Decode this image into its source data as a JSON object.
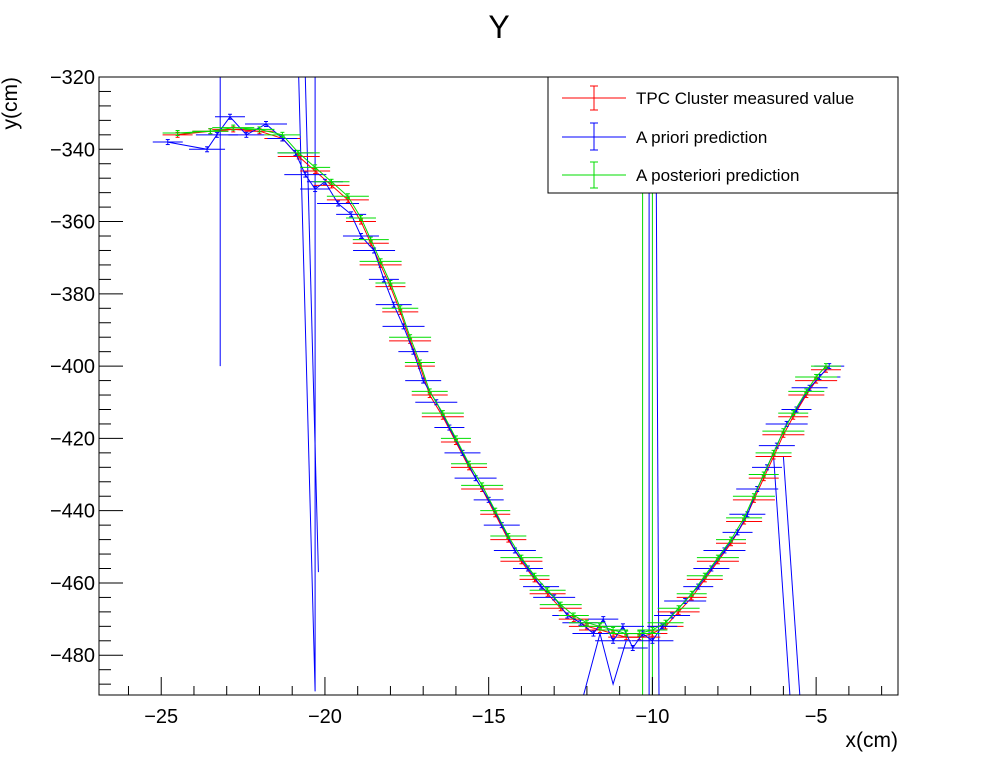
{
  "chart_data": {
    "type": "line",
    "title": "Y",
    "xlabel": "x(cm)",
    "ylabel": "y(cm)",
    "xlim": [
      -26.9,
      -2.5
    ],
    "ylim": [
      -491,
      -320
    ],
    "x_ticks": [
      -25,
      -20,
      -15,
      -10,
      -5
    ],
    "y_ticks": [
      -320,
      -340,
      -360,
      -380,
      -400,
      -420,
      -440,
      -460,
      -480
    ],
    "x_tick_labels": [
      "−25",
      "−20",
      "−15",
      "−10",
      "−5"
    ],
    "y_tick_labels": [
      "−320",
      "−340",
      "−360",
      "−380",
      "−400",
      "−420",
      "−440",
      "−460",
      "−480"
    ],
    "grid": false,
    "legend_position": "top-right",
    "series": [
      {
        "name": "TPC Cluster measured value",
        "color": "#ff0000",
        "x": [
          -24.5,
          -23.5,
          -22.8,
          -22.0,
          -21.3,
          -20.8,
          -20.3,
          -19.8,
          -19.3,
          -18.9,
          -18.6,
          -18.3,
          -18.0,
          -17.7,
          -17.4,
          -17.1,
          -16.8,
          -16.4,
          -16.0,
          -15.6,
          -15.2,
          -14.8,
          -14.4,
          -14.0,
          -13.6,
          -13.2,
          -12.8,
          -12.4,
          -12.0,
          -11.6,
          -11.2,
          -10.8,
          -10.4,
          -10.0,
          -9.6,
          -9.2,
          -8.8,
          -8.4,
          -8.0,
          -7.6,
          -7.2,
          -6.9,
          -6.6,
          -6.3,
          -6.0,
          -5.7,
          -5.3,
          -5.0,
          -4.7
        ],
        "y": [
          -336,
          -335,
          -334.5,
          -335,
          -337,
          -342,
          -346,
          -350,
          -354,
          -360,
          -366,
          -372,
          -378,
          -385,
          -393,
          -400,
          -408,
          -414,
          -421,
          -428,
          -434,
          -441,
          -448,
          -454,
          -459,
          -463,
          -467,
          -470,
          -472,
          -473,
          -474,
          -475,
          -475,
          -474,
          -472,
          -468,
          -464,
          -459,
          -454,
          -449,
          -443,
          -437,
          -431,
          -425,
          -419,
          -414,
          -408,
          -404,
          -401
        ]
      },
      {
        "name": "A priori prediction",
        "color": "#0000ff",
        "x": [
          -24.8,
          -23.6,
          -23.3,
          -22.9,
          -22.4,
          -21.8,
          -21.3,
          -20.9,
          -20.6,
          -20.3,
          -20.0,
          -19.6,
          -19.2,
          -18.9,
          -18.5,
          -18.2,
          -17.9,
          -17.6,
          -17.3,
          -17.0,
          -16.6,
          -16.2,
          -15.8,
          -15.4,
          -15.0,
          -14.6,
          -14.2,
          -13.8,
          -13.4,
          -13.0,
          -12.6,
          -12.2,
          -11.8,
          -11.5,
          -11.2,
          -10.9,
          -10.6,
          -10.3,
          -10.0,
          -9.7,
          -9.4,
          -9.0,
          -8.6,
          -8.2,
          -7.8,
          -7.4,
          -7.1,
          -6.8,
          -6.5,
          -6.2,
          -5.9,
          -5.6,
          -5.2,
          -4.9,
          -4.6
        ],
        "y": [
          -338,
          -340,
          -336,
          -331,
          -336,
          -333,
          -337,
          -341,
          -347,
          -351,
          -349,
          -355,
          -358,
          -364,
          -368,
          -376,
          -383,
          -389,
          -396,
          -404,
          -410,
          -417,
          -424,
          -431,
          -437,
          -444,
          -451,
          -456,
          -461,
          -464,
          -469,
          -471,
          -474,
          -470,
          -476,
          -472,
          -478,
          -474,
          -476,
          -472,
          -469,
          -465,
          -461,
          -456,
          -451,
          -446,
          -441,
          -434,
          -428,
          -422,
          -416,
          -412,
          -406,
          -403,
          -400
        ]
      },
      {
        "name": "A posteriori prediction",
        "color": "#00dd00",
        "x": [
          -24.5,
          -23.5,
          -22.8,
          -22.0,
          -21.3,
          -20.8,
          -20.3,
          -19.8,
          -19.3,
          -18.9,
          -18.6,
          -18.3,
          -18.0,
          -17.7,
          -17.4,
          -17.1,
          -16.8,
          -16.4,
          -16.0,
          -15.6,
          -15.2,
          -14.8,
          -14.4,
          -14.0,
          -13.6,
          -13.2,
          -12.8,
          -12.4,
          -12.0,
          -11.6,
          -11.2,
          -10.8,
          -10.4,
          -10.0,
          -9.6,
          -9.2,
          -8.8,
          -8.4,
          -8.0,
          -7.6,
          -7.2,
          -6.9,
          -6.6,
          -6.3,
          -6.0,
          -5.7,
          -5.3,
          -5.0,
          -4.7
        ],
        "y": [
          -335.5,
          -335,
          -334,
          -334.5,
          -336,
          -341,
          -345,
          -349,
          -353,
          -359,
          -365,
          -371,
          -377,
          -384,
          -392,
          -399,
          -407,
          -413,
          -420,
          -427,
          -433,
          -440,
          -447,
          -453,
          -458,
          -462,
          -466,
          -469,
          -471,
          -472,
          -473,
          -474,
          -474,
          -473,
          -471,
          -467,
          -463,
          -458,
          -453,
          -448,
          -442,
          -436,
          -430,
          -424,
          -418,
          -413,
          -407,
          -403,
          -400
        ]
      }
    ],
    "outliers": [
      {
        "series": 1,
        "x": [
          -23.2,
          -23.2
        ],
        "y": [
          -320,
          -400
        ]
      },
      {
        "series": 1,
        "x": [
          -20.8,
          -20.3,
          -20.3
        ],
        "y": [
          -320,
          -490,
          -320
        ]
      },
      {
        "series": 1,
        "x": [
          -20.6,
          -20.2
        ],
        "y": [
          -320,
          -457
        ]
      },
      {
        "series": 1,
        "x": [
          -10.1,
          -10.1
        ],
        "y": [
          -320,
          -491
        ]
      },
      {
        "series": 1,
        "x": [
          -9.9,
          -9.8
        ],
        "y": [
          -320,
          -491
        ]
      },
      {
        "series": 1,
        "x": [
          -6.3,
          -5.8
        ],
        "y": [
          -425,
          -491
        ]
      },
      {
        "series": 1,
        "x": [
          -6.0,
          -5.5
        ],
        "y": [
          -425,
          -491
        ]
      },
      {
        "series": 1,
        "x": [
          -12.1,
          -11.6,
          -11.2,
          -10.8
        ],
        "y": [
          -491,
          -474,
          -488,
          -476
        ]
      },
      {
        "series": 2,
        "x": [
          -10.3,
          -10.3
        ],
        "y": [
          -320,
          -491
        ]
      },
      {
        "series": 2,
        "x": [
          -10.0,
          -10.0
        ],
        "y": [
          -320,
          -491
        ]
      }
    ]
  }
}
